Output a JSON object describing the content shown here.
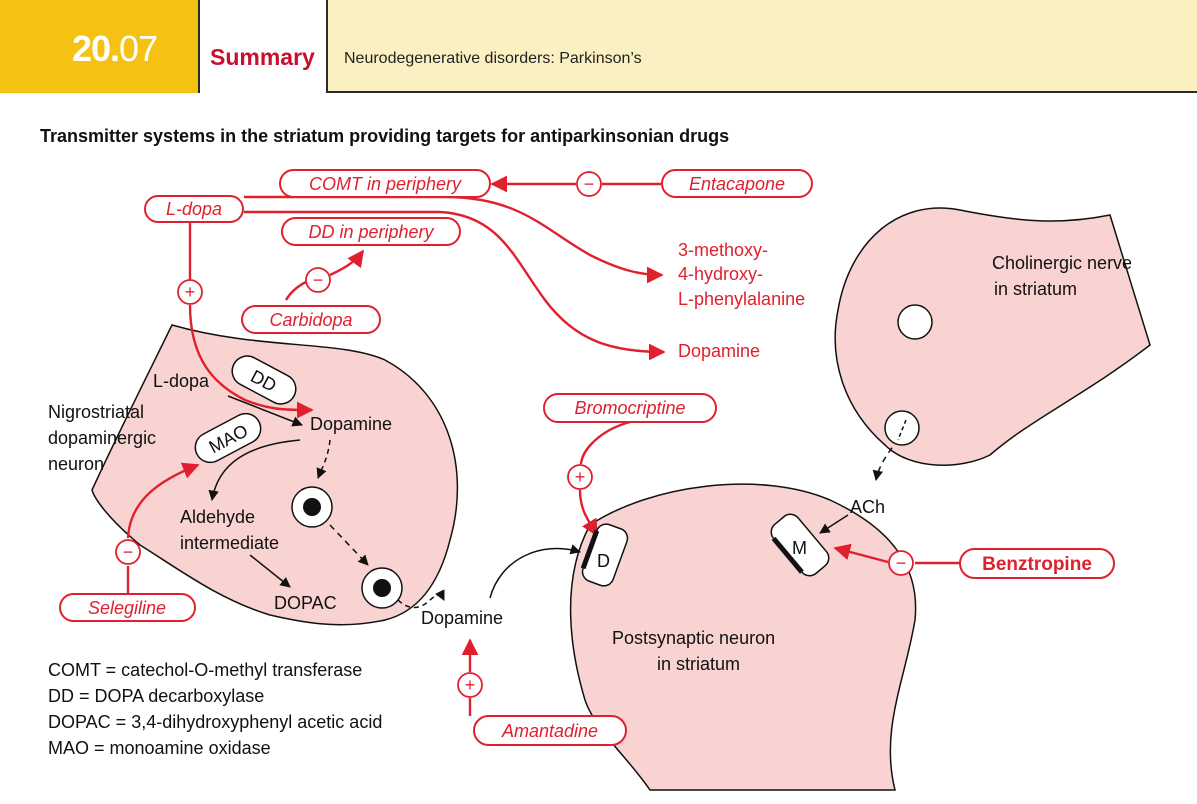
{
  "header": {
    "section_major": "20.",
    "section_minor": "07",
    "tab": "Summary",
    "topic": "Neurodegenerative disorders: Parkinson’s"
  },
  "title": "Transmitter systems in the striatum providing targets for antiparkinsonian drugs",
  "drugs": {
    "ldopa": "L-dopa",
    "comt_periphery": "COMT in periphery",
    "entacapone": "Entacapone",
    "dd_periphery": "DD in periphery",
    "carbidopa": "Carbidopa",
    "selegiline": "Selegiline",
    "bromocriptine": "Bromocriptine",
    "amantadine": "Amantadine",
    "benztropine": "Benztropine"
  },
  "products": {
    "methoxy_line1": "3-methoxy-",
    "methoxy_line2": "4-hydroxy-",
    "methoxy_line3": "L-phenylalanine",
    "dopamine_periph": "Dopamine"
  },
  "neuron": {
    "name_line1": "Nigrostriatal",
    "name_line2": "dopaminergic",
    "name_line3": "neuron",
    "ldopa": "L-dopa",
    "dd_enzyme": "DD",
    "dopamine": "Dopamine",
    "mao_enzyme": "MAO",
    "aldehyde_line1": "Aldehyde",
    "aldehyde_line2": "intermediate",
    "dopac": "DOPAC"
  },
  "synapse": {
    "dopamine": "Dopamine",
    "ach": "ACh",
    "receptor_d": "D",
    "receptor_m": "M"
  },
  "cholinergic": {
    "line1": "Cholinergic nerve",
    "line2": "in striatum"
  },
  "postsynaptic": {
    "line1": "Postsynaptic neuron",
    "line2": "in striatum"
  },
  "symbols": {
    "plus": "+",
    "minus": "−"
  },
  "legend": [
    "COMT = catechol-O-methyl transferase",
    "DD = DOPA decarboxylase",
    "DOPAC = 3,4-dihydroxyphenyl acetic acid",
    "MAO = monoamine oxidase"
  ],
  "colors": {
    "accent_red": "#e0202e",
    "cell_fill": "#f8d3d1",
    "header_yellow": "#f5c213",
    "header_cream": "#fbf0c2"
  }
}
